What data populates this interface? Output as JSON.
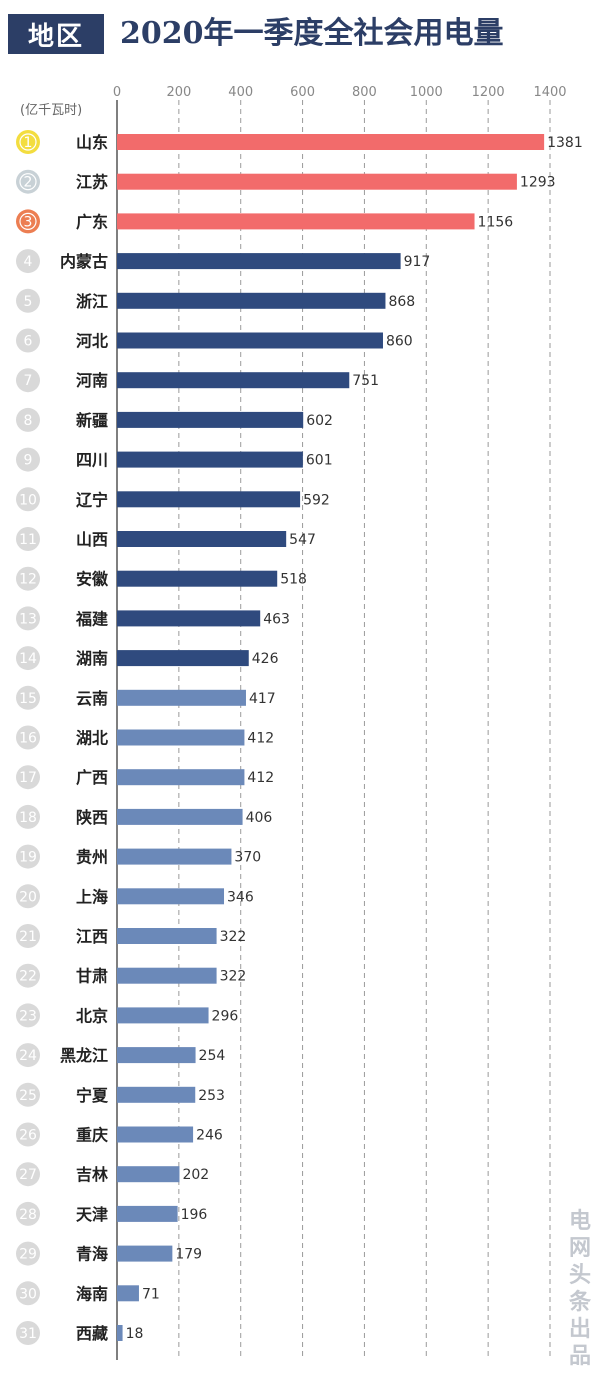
{
  "header": {
    "badge": "地区",
    "title": "2020年一季度全社会用电量"
  },
  "watermark": "电网头条出品",
  "chart_data": {
    "type": "bar",
    "orientation": "horizontal",
    "title": "2020年一季度全社会用电量",
    "unit": "(亿千瓦时)",
    "xlim": [
      0,
      1400
    ],
    "ticks": [
      0,
      200,
      400,
      600,
      800,
      1000,
      1200,
      1400
    ],
    "grid": true,
    "colors": {
      "top3": "#f26b6b",
      "dark": "#2f4a7e",
      "light": "#6b89b9",
      "rank_gold": "#f3dd3f",
      "rank_silver": "#c8d1d6",
      "rank_bronze": "#ec7e52",
      "rank_default": "#d9d9d9"
    },
    "categories": [
      "山东",
      "江苏",
      "广东",
      "内蒙古",
      "浙江",
      "河北",
      "河南",
      "新疆",
      "四川",
      "辽宁",
      "山西",
      "安徽",
      "福建",
      "湖南",
      "云南",
      "湖北",
      "广西",
      "陕西",
      "贵州",
      "上海",
      "江西",
      "甘肃",
      "北京",
      "黑龙江",
      "宁夏",
      "重庆",
      "吉林",
      "天津",
      "青海",
      "海南",
      "西藏"
    ],
    "ranks": [
      "1",
      "2",
      "3",
      "4",
      "5",
      "6",
      "7",
      "8",
      "9",
      "10",
      "11",
      "12",
      "13",
      "14",
      "15",
      "16",
      "17",
      "18",
      "19",
      "20",
      "21",
      "22",
      "23",
      "24",
      "25",
      "26",
      "27",
      "28",
      "29",
      "30",
      "31"
    ],
    "values": [
      1381,
      1293,
      1156,
      917,
      868,
      860,
      751,
      602,
      601,
      592,
      547,
      518,
      463,
      426,
      417,
      412,
      412,
      406,
      370,
      346,
      322,
      322,
      296,
      254,
      253,
      246,
      202,
      196,
      179,
      71,
      18
    ]
  }
}
